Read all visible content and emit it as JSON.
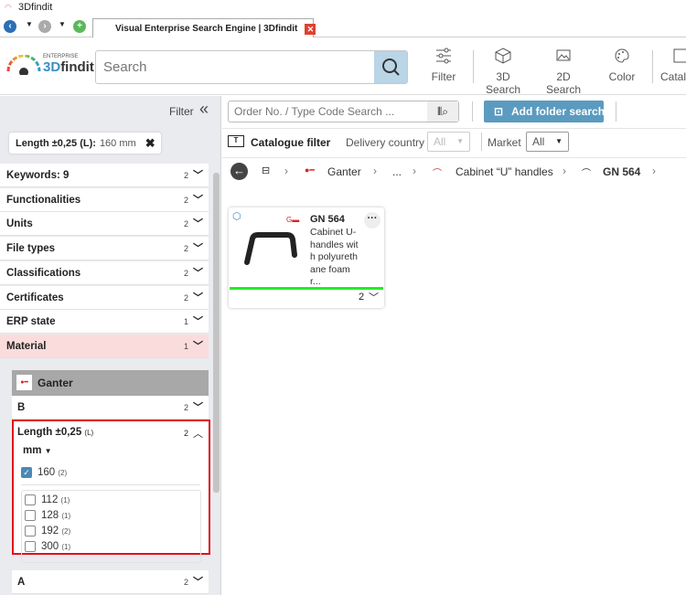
{
  "window": {
    "title": "3Dfindit",
    "tab_title": "Visual Enterprise Search Engine | 3Dfindit"
  },
  "header": {
    "logo_small": "ENTERPRISE",
    "logo_main_a": "3D",
    "logo_main_b": "findit",
    "search_placeholder": "Search",
    "tools": [
      {
        "label": "Filter",
        "icon": "sliders-icon"
      },
      {
        "label": "3D Search",
        "icon": "cube-icon"
      },
      {
        "label": "2D Search",
        "icon": "image-icon"
      },
      {
        "label": "Color",
        "icon": "palette-icon"
      },
      {
        "label": "Catal",
        "icon": "catalog-icon"
      }
    ]
  },
  "filter_panel": {
    "title": "Filter",
    "chip": {
      "label": "Length ±0,25 (L):",
      "value": "160 mm"
    },
    "rows": [
      {
        "label": "Keywords: 9",
        "count": "2"
      },
      {
        "label": "Functionalities",
        "count": "2"
      },
      {
        "label": "Units",
        "count": "2"
      },
      {
        "label": "File types",
        "count": "2"
      },
      {
        "label": "Classifications",
        "count": "2"
      },
      {
        "label": "Certificates",
        "count": "2"
      },
      {
        "label": "ERP state",
        "count": "1"
      },
      {
        "label": "Material",
        "count": "1"
      }
    ],
    "catalog": {
      "name": "Ganter",
      "rows": [
        {
          "label": "B",
          "count": "2"
        }
      ],
      "length": {
        "label": "Length ±0,25",
        "sub": "(L)",
        "count": "2",
        "unit": "mm",
        "selected": {
          "value": "160",
          "count": "(2)"
        },
        "options": [
          {
            "value": "112",
            "count": "(1)"
          },
          {
            "value": "128",
            "count": "(1)"
          },
          {
            "value": "192",
            "count": "(2)"
          },
          {
            "value": "300",
            "count": "(1)"
          }
        ]
      },
      "last_row": {
        "label": "A",
        "count": "2"
      }
    }
  },
  "main": {
    "order_placeholder": "Order No. / Type Code Search ...",
    "add_folder_label": "Add folder search",
    "catalogue_filter": "Catalogue filter",
    "delivery_label": "Delivery country",
    "delivery_value": "All",
    "market_label": "Market",
    "market_value": "All",
    "breadcrumb": [
      "Ganter",
      "...",
      "Cabinet “U” handles",
      "GN 564"
    ],
    "card": {
      "title": "GN 564",
      "desc": "Cabinet U-handles with polyurethane foam r...",
      "count": "2",
      "progress_color": "#22ee22"
    }
  },
  "colors": {
    "accent": "#5b9bbf",
    "highlight_row": "#fbdcdc",
    "red_box": "#e0101a"
  }
}
